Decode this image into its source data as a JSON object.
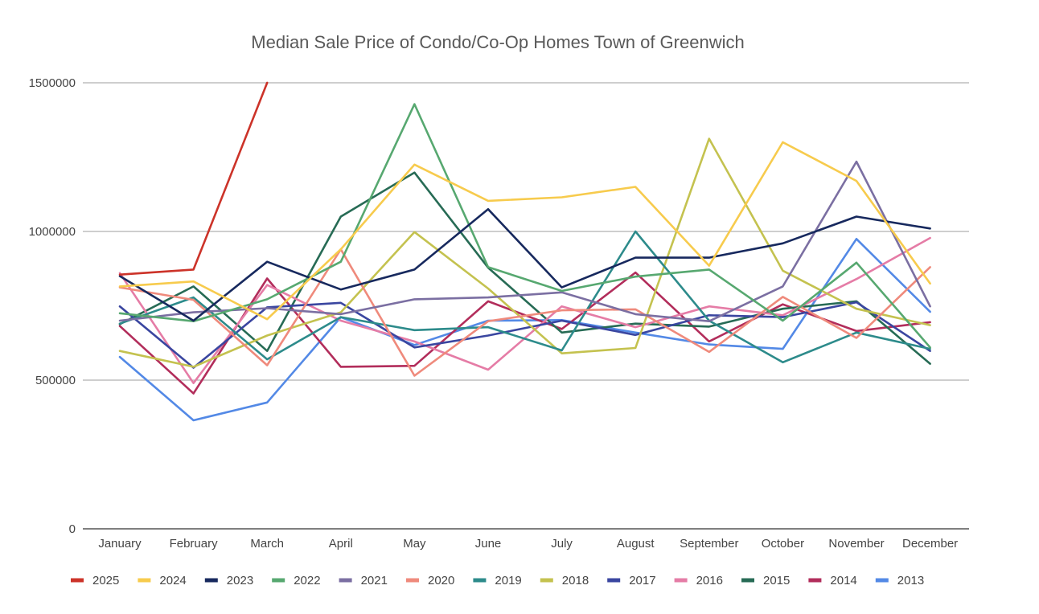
{
  "chart_data": {
    "type": "line",
    "title": "Median Sale Price of Condo/Co-Op Homes Town of Greenwich",
    "xlabel": "",
    "ylabel": "",
    "ylim": [
      0,
      1500000
    ],
    "yticks": [
      0,
      500000,
      1000000,
      1500000
    ],
    "ytick_labels": [
      "0",
      "500000",
      "1000000",
      "1500000"
    ],
    "grid": true,
    "legend_position": "bottom",
    "categories": [
      "January",
      "February",
      "March",
      "April",
      "May",
      "June",
      "July",
      "August",
      "September",
      "October",
      "November",
      "December"
    ],
    "series": [
      {
        "name": "2025",
        "color": "#cc3329",
        "values": [
          855000,
          872000,
          1500000,
          null,
          null,
          null,
          null,
          null,
          null,
          null,
          null,
          null
        ]
      },
      {
        "name": "2024",
        "color": "#f7cb4d",
        "values": [
          815000,
          832000,
          705000,
          940000,
          1225000,
          1103000,
          1115000,
          1150000,
          885000,
          1300000,
          1170000,
          825000
        ]
      },
      {
        "name": "2023",
        "color": "#17295e",
        "values": [
          850000,
          700000,
          898000,
          805000,
          872000,
          1075000,
          812000,
          912000,
          912000,
          960000,
          1050000,
          1010000
        ]
      },
      {
        "name": "2022",
        "color": "#57a870",
        "values": [
          725000,
          698000,
          772000,
          898000,
          1428000,
          880000,
          800000,
          848000,
          872000,
          700000,
          895000,
          610000
        ]
      },
      {
        "name": "2021",
        "color": "#7b6fa2",
        "values": [
          700000,
          728000,
          742000,
          722000,
          772000,
          778000,
          795000,
          722000,
          698000,
          815000,
          1235000,
          748000
        ]
      },
      {
        "name": "2020",
        "color": "#ef8a7c",
        "values": [
          812000,
          770000,
          550000,
          940000,
          515000,
          698000,
          735000,
          738000,
          595000,
          780000,
          642000,
          880000
        ]
      },
      {
        "name": "2019",
        "color": "#2d8b8b",
        "values": [
          690000,
          778000,
          570000,
          712000,
          668000,
          678000,
          600000,
          1000000,
          700000,
          560000,
          660000,
          605000
        ]
      },
      {
        "name": "2018",
        "color": "#c4c24f",
        "values": [
          598000,
          545000,
          650000,
          728000,
          998000,
          808000,
          590000,
          608000,
          1312000,
          868000,
          740000,
          685000
        ]
      },
      {
        "name": "2017",
        "color": "#3a46a0",
        "values": [
          748000,
          542000,
          745000,
          760000,
          610000,
          650000,
          700000,
          652000,
          718000,
          712000,
          762000,
          598000
        ]
      },
      {
        "name": "2016",
        "color": "#e57ca6",
        "values": [
          860000,
          490000,
          820000,
          700000,
          630000,
          535000,
          748000,
          678000,
          748000,
          718000,
          840000,
          978000
        ]
      },
      {
        "name": "2015",
        "color": "#276b55",
        "values": [
          688000,
          815000,
          598000,
          1050000,
          1198000,
          878000,
          660000,
          690000,
          680000,
          740000,
          765000,
          555000
        ]
      },
      {
        "name": "2014",
        "color": "#b22d5b",
        "values": [
          682000,
          455000,
          842000,
          545000,
          548000,
          765000,
          672000,
          862000,
          630000,
          755000,
          665000,
          695000
        ]
      },
      {
        "name": "2013",
        "color": "#5389e6",
        "values": [
          578000,
          365000,
          425000,
          712000,
          618000,
          700000,
          702000,
          660000,
          620000,
          605000,
          975000,
          730000
        ]
      }
    ]
  }
}
